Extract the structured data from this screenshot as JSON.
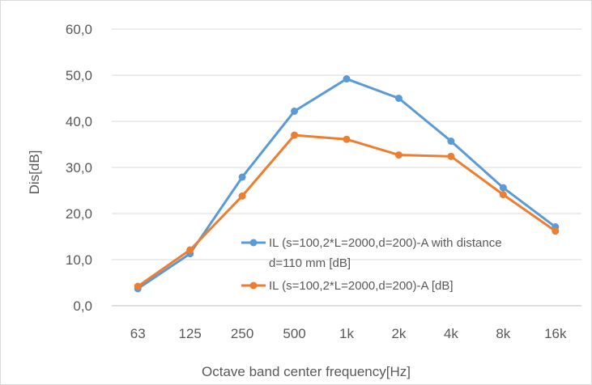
{
  "chart_data": {
    "type": "line",
    "title": "",
    "xlabel": "Octave band center frequency[Hz]",
    "ylabel": "Dis[dB]",
    "categories": [
      "63",
      "125",
      "250",
      "500",
      "1k",
      "2k",
      "4k",
      "8k",
      "16k"
    ],
    "ylim": [
      0,
      60
    ],
    "yticks": [
      "0,0",
      "10,0",
      "20,0",
      "30,0",
      "40,0",
      "50,0",
      "60,0"
    ],
    "grid": "horizontal",
    "legend_position": "inside-lower-right",
    "series": [
      {
        "name": "IL (s=100,2*L=2000,d=200)-A with distance",
        "name_cont": "d=110 mm [dB]",
        "color": "#5B9BD5",
        "values": [
          3.7,
          11.3,
          27.9,
          42.2,
          49.2,
          45.0,
          35.7,
          25.6,
          17.1
        ]
      },
      {
        "name": "IL (s=100,2*L=2000,d=200)-A [dB]",
        "color": "#ED7D31",
        "values": [
          4.2,
          12.1,
          23.8,
          37.0,
          36.1,
          32.7,
          32.4,
          24.1,
          16.2
        ]
      }
    ]
  }
}
